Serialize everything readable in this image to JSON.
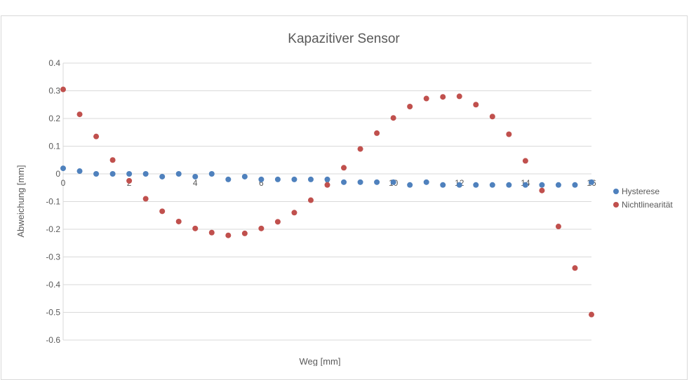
{
  "chart_data": {
    "type": "scatter",
    "title": "Kapazitiver Sensor",
    "xlabel": "Weg [mm]",
    "ylabel": "Abweichung [mm]",
    "xlim": [
      0,
      16
    ],
    "ylim": [
      -0.6,
      0.4
    ],
    "x_ticks": [
      0,
      2,
      4,
      6,
      8,
      10,
      12,
      14,
      16
    ],
    "y_ticks": [
      0.4,
      0.3,
      0.2,
      0.1,
      0,
      -0.1,
      -0.2,
      -0.3,
      -0.4,
      -0.5,
      -0.6
    ],
    "x_tick_labels": [
      "0",
      "2",
      "4",
      "6",
      "8",
      "10",
      "12",
      "14",
      "16"
    ],
    "y_tick_labels": [
      "0.4",
      "0.3",
      "0.2",
      "0.1",
      "0",
      "-0.1",
      "-0.2",
      "-0.3",
      "-0.4",
      "-0.5",
      "-0.6"
    ],
    "grid": "horizontal",
    "legend_position": "right",
    "series": [
      {
        "name": "Hysterese",
        "color": "#4f81bd",
        "x": [
          0,
          0.5,
          1,
          1.5,
          2,
          2.5,
          3,
          3.5,
          4,
          4.5,
          5,
          5.5,
          6,
          6.5,
          7,
          7.5,
          8,
          8.5,
          9,
          9.5,
          10,
          10.5,
          11,
          11.5,
          12,
          12.5,
          13,
          13.5,
          14,
          14.5,
          15,
          15.5,
          16
        ],
        "y": [
          0.02,
          0.01,
          0.0,
          0.0,
          0.0,
          0.0,
          -0.01,
          0.0,
          -0.01,
          0.0,
          -0.02,
          -0.01,
          -0.02,
          -0.02,
          -0.02,
          -0.02,
          -0.02,
          -0.03,
          -0.03,
          -0.03,
          -0.03,
          -0.04,
          -0.03,
          -0.04,
          -0.04,
          -0.04,
          -0.04,
          -0.04,
          -0.04,
          -0.04,
          -0.04,
          -0.04,
          -0.03
        ]
      },
      {
        "name": "Nichtlinearität",
        "color": "#c0504d",
        "x": [
          0,
          0.5,
          1,
          1.5,
          2,
          2.5,
          3,
          3.5,
          4,
          4.5,
          5,
          5.5,
          6,
          6.5,
          7,
          7.5,
          8,
          8.5,
          9,
          9.5,
          10,
          10.5,
          11,
          11.5,
          12,
          12.5,
          13,
          13.5,
          14,
          14.5,
          15,
          15.5,
          16
        ],
        "y": [
          0.305,
          0.215,
          0.135,
          0.05,
          -0.025,
          -0.09,
          -0.135,
          -0.172,
          -0.197,
          -0.212,
          -0.222,
          -0.215,
          -0.197,
          -0.173,
          -0.14,
          -0.095,
          -0.04,
          0.022,
          0.09,
          0.147,
          0.202,
          0.243,
          0.272,
          0.278,
          0.28,
          0.25,
          0.207,
          0.143,
          0.047,
          -0.06,
          -0.19,
          -0.34,
          -0.508
        ]
      }
    ]
  }
}
